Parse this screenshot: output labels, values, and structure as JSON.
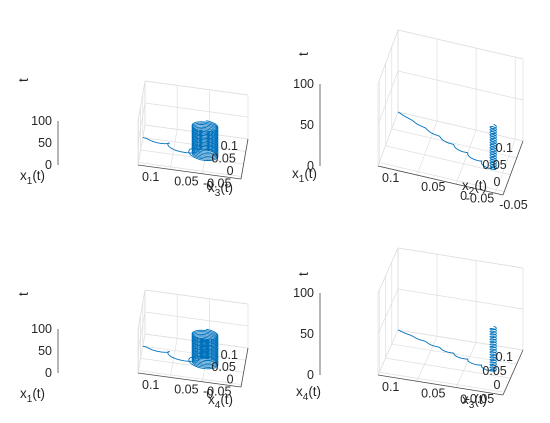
{
  "chart_data": [
    {
      "type": "line3d",
      "axes": {
        "a": {
          "label": "x",
          "sub": "1",
          "suffix": "(t)",
          "ticks": [
            -0.05,
            0,
            0.05,
            0.1
          ],
          "tick_labels": [
            "-0.05",
            "0",
            "0.05",
            "0.1"
          ],
          "range": [
            -0.06,
            0.1
          ]
        },
        "b": {
          "label": "x",
          "sub": "3",
          "suffix": "(t)",
          "ticks": [
            0,
            0.05,
            0.1
          ],
          "tick_labels": [
            "0",
            "0.05",
            "0.1"
          ],
          "range": [
            -0.06,
            0.1
          ]
        },
        "t": {
          "label": "t",
          "ticks": [
            0,
            50,
            100
          ],
          "tick_labels": [
            "0",
            "50",
            "100"
          ],
          "range": [
            0,
            100
          ]
        }
      },
      "curve": {
        "model": "spiral",
        "amplitude": 0.02,
        "cycles": 24,
        "t_end": 75,
        "initial": [
          0.05,
          0.1,
          0
        ]
      },
      "grid": true,
      "legend": "none"
    },
    {
      "type": "line3d",
      "axes": {
        "a": {
          "label": "x",
          "sub": "1",
          "suffix": "(t)",
          "ticks": [
            -0.05,
            0,
            0.05,
            0.1
          ],
          "tick_labels": [
            "-0.05",
            "0",
            "0.05",
            "0.1"
          ],
          "range": [
            -0.06,
            0.1
          ]
        },
        "b": {
          "label": "x",
          "sub": "2",
          "suffix": "(t)",
          "ticks": [
            -0.05,
            0,
            0.05,
            0.1
          ],
          "tick_labels": [
            "-0.05",
            "0",
            "0.05",
            "0.1"
          ],
          "range": [
            -0.06,
            0.1
          ]
        },
        "t": {
          "label": "t",
          "ticks": [
            0,
            50,
            100
          ],
          "tick_labels": [
            "0",
            "50",
            "100"
          ],
          "range": [
            0,
            100
          ]
        }
      },
      "curve": {
        "model": "collapse",
        "amplitude": 0.004,
        "cycles": 24,
        "t_end": 75,
        "initial": [
          0.1,
          0.1,
          0
        ]
      },
      "grid": true,
      "legend": "none"
    },
    {
      "type": "line3d",
      "axes": {
        "a": {
          "label": "x",
          "sub": "1",
          "suffix": "(t)",
          "ticks": [
            -0.05,
            0,
            0.05,
            0.1
          ],
          "tick_labels": [
            "-0.05",
            "0",
            "0.05",
            "0.1"
          ],
          "range": [
            -0.06,
            0.1
          ]
        },
        "b": {
          "label": "x",
          "sub": "4",
          "suffix": "(t)",
          "ticks": [
            0,
            0.05,
            0.1
          ],
          "tick_labels": [
            "0",
            "0.05",
            "0.1"
          ],
          "range": [
            -0.06,
            0.1
          ]
        },
        "t": {
          "label": "t",
          "ticks": [
            0,
            50,
            100
          ],
          "tick_labels": [
            "0",
            "50",
            "100"
          ],
          "range": [
            0,
            100
          ]
        }
      },
      "curve": {
        "model": "spiral",
        "amplitude": 0.02,
        "cycles": 24,
        "t_end": 75,
        "initial": [
          0.05,
          0.1,
          0
        ]
      },
      "grid": true,
      "legend": "none"
    },
    {
      "type": "line3d",
      "axes": {
        "a": {
          "label": "x",
          "sub": "4",
          "suffix": "(t)",
          "ticks": [
            -0.05,
            0,
            0.05,
            0.1
          ],
          "tick_labels": [
            "-0.05",
            "0",
            "0.05",
            "0.1"
          ],
          "range": [
            -0.06,
            0.1
          ]
        },
        "b": {
          "label": "x",
          "sub": "3",
          "suffix": "(t)",
          "ticks": [
            0,
            0.05,
            0.1
          ],
          "tick_labels": [
            "0",
            "0.05",
            "0.1"
          ],
          "range": [
            -0.06,
            0.1
          ]
        },
        "t": {
          "label": "t",
          "ticks": [
            0,
            50,
            100
          ],
          "tick_labels": [
            "0",
            "50",
            "100"
          ],
          "range": [
            0,
            100
          ]
        }
      },
      "curve": {
        "model": "collapse",
        "amplitude": 0.004,
        "cycles": 24,
        "t_end": 75,
        "initial": [
          0.1,
          0.1,
          0
        ]
      },
      "grid": true,
      "legend": "none"
    }
  ],
  "colors": {
    "curve": "#0072bd",
    "grid": "#dfdfdf",
    "box": "#4a4a4a",
    "text": "#262626"
  }
}
